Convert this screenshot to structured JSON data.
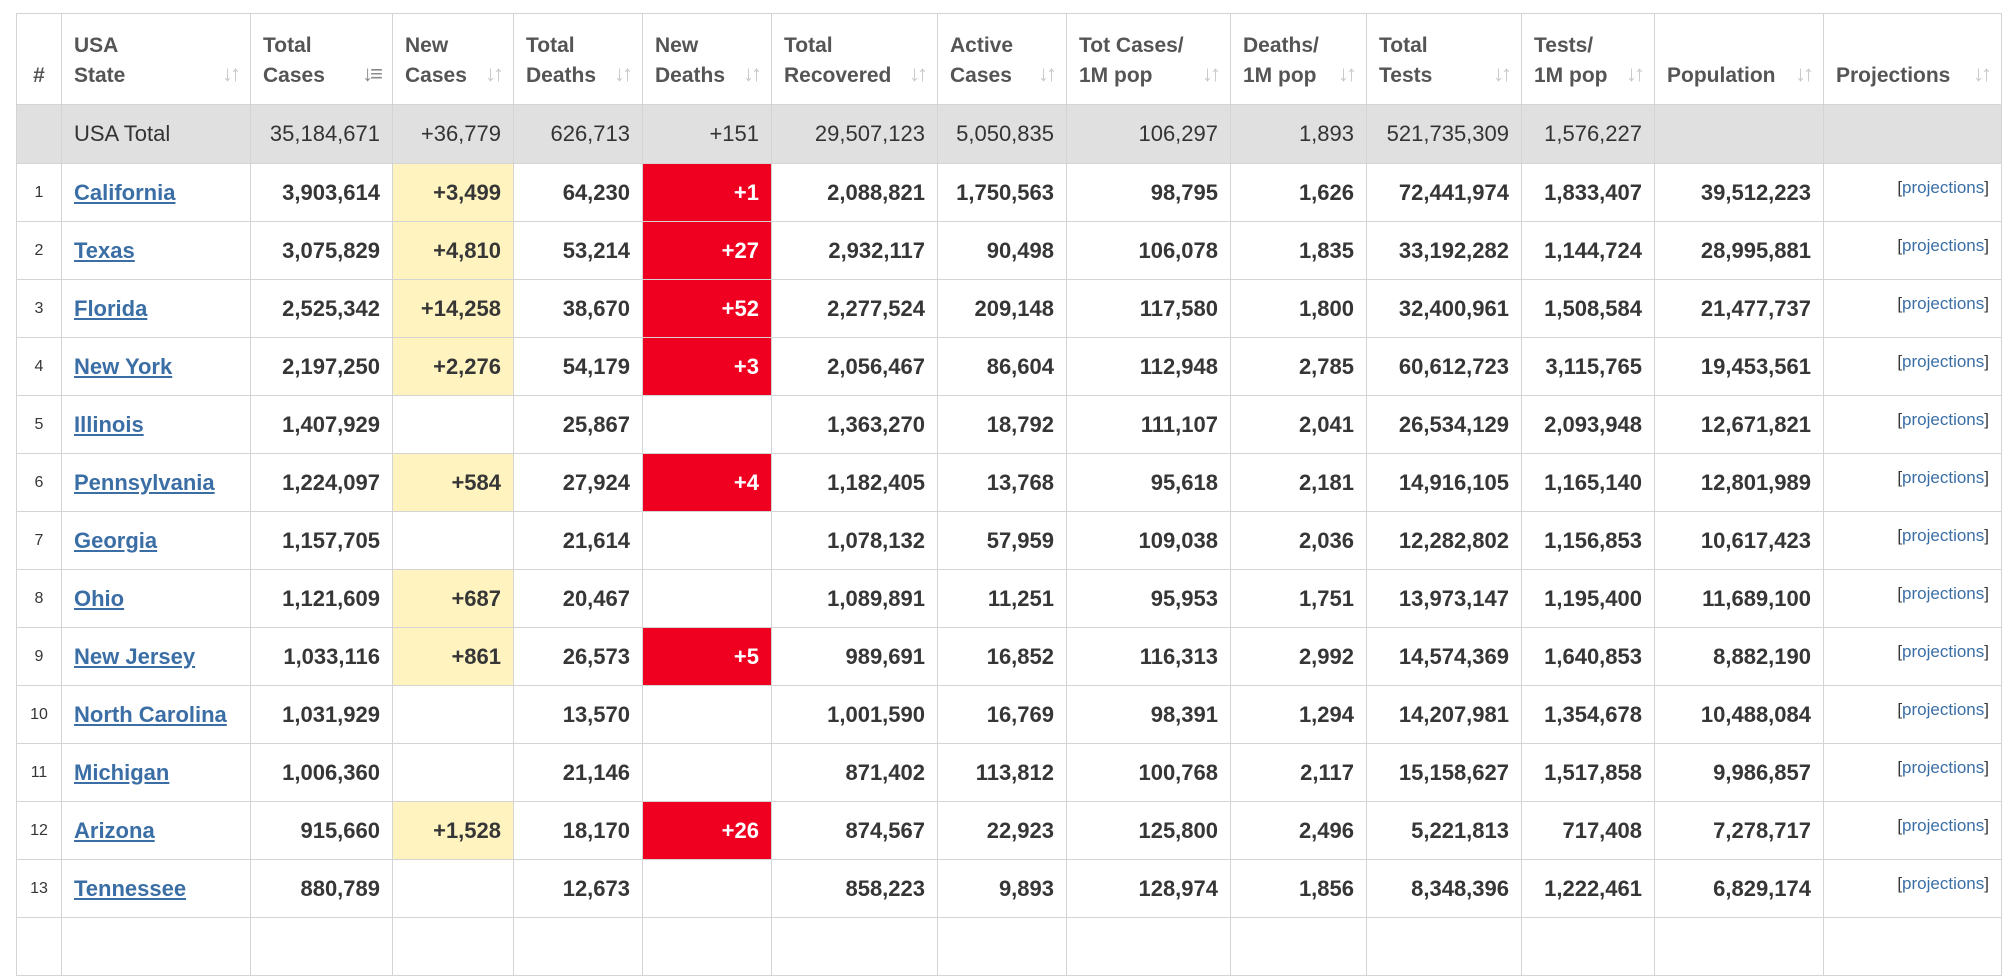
{
  "headers": {
    "num": "#",
    "state": [
      "USA",
      "State"
    ],
    "total_cases": [
      "Total",
      "Cases"
    ],
    "new_cases": [
      "New",
      "Cases"
    ],
    "total_deaths": [
      "Total",
      "Deaths"
    ],
    "new_deaths": [
      "New",
      "Deaths"
    ],
    "total_recovered": [
      "Total",
      "Recovered"
    ],
    "active_cases": [
      "Active",
      "Cases"
    ],
    "tot_cases_1m": [
      "Tot Cases/",
      "1M pop"
    ],
    "deaths_1m": [
      "Deaths/",
      "1M pop"
    ],
    "total_tests": [
      "Total",
      "Tests"
    ],
    "tests_1m": [
      "Tests/",
      "1M pop"
    ],
    "population": [
      "",
      "Population"
    ],
    "projections": [
      "",
      "Projections"
    ]
  },
  "icons": {
    "sort": "sort-arrows-icon",
    "sort_active": "sort-active-icon"
  },
  "colors": {
    "new_cases_bg": "#fff4c0",
    "new_deaths_bg": "#ef0020",
    "total_row_bg": "#e0e0e0",
    "link": "#3a6ea5"
  },
  "total": {
    "label": "USA Total",
    "total_cases": "35,184,671",
    "new_cases": "+36,779",
    "total_deaths": "626,713",
    "new_deaths": "+151",
    "total_recovered": "29,507,123",
    "active_cases": "5,050,835",
    "tot_cases_1m": "106,297",
    "deaths_1m": "1,893",
    "total_tests": "521,735,309",
    "tests_1m": "1,576,227"
  },
  "rows": [
    {
      "idx": "1",
      "state": "California",
      "total_cases": "3,903,614",
      "new_cases": "+3,499",
      "total_deaths": "64,230",
      "new_deaths": "+1",
      "total_recovered": "2,088,821",
      "active_cases": "1,750,563",
      "tot_cases_1m": "98,795",
      "deaths_1m": "1,626",
      "total_tests": "72,441,974",
      "tests_1m": "1,833,407",
      "population": "39,512,223",
      "projections": "projections"
    },
    {
      "idx": "2",
      "state": "Texas",
      "total_cases": "3,075,829",
      "new_cases": "+4,810",
      "total_deaths": "53,214",
      "new_deaths": "+27",
      "total_recovered": "2,932,117",
      "active_cases": "90,498",
      "tot_cases_1m": "106,078",
      "deaths_1m": "1,835",
      "total_tests": "33,192,282",
      "tests_1m": "1,144,724",
      "population": "28,995,881",
      "projections": "projections"
    },
    {
      "idx": "3",
      "state": "Florida",
      "total_cases": "2,525,342",
      "new_cases": "+14,258",
      "total_deaths": "38,670",
      "new_deaths": "+52",
      "total_recovered": "2,277,524",
      "active_cases": "209,148",
      "tot_cases_1m": "117,580",
      "deaths_1m": "1,800",
      "total_tests": "32,400,961",
      "tests_1m": "1,508,584",
      "population": "21,477,737",
      "projections": "projections"
    },
    {
      "idx": "4",
      "state": "New York",
      "total_cases": "2,197,250",
      "new_cases": "+2,276",
      "total_deaths": "54,179",
      "new_deaths": "+3",
      "total_recovered": "2,056,467",
      "active_cases": "86,604",
      "tot_cases_1m": "112,948",
      "deaths_1m": "2,785",
      "total_tests": "60,612,723",
      "tests_1m": "3,115,765",
      "population": "19,453,561",
      "projections": "projections"
    },
    {
      "idx": "5",
      "state": "Illinois",
      "total_cases": "1,407,929",
      "new_cases": "",
      "total_deaths": "25,867",
      "new_deaths": "",
      "total_recovered": "1,363,270",
      "active_cases": "18,792",
      "tot_cases_1m": "111,107",
      "deaths_1m": "2,041",
      "total_tests": "26,534,129",
      "tests_1m": "2,093,948",
      "population": "12,671,821",
      "projections": "projections"
    },
    {
      "idx": "6",
      "state": "Pennsylvania",
      "total_cases": "1,224,097",
      "new_cases": "+584",
      "total_deaths": "27,924",
      "new_deaths": "+4",
      "total_recovered": "1,182,405",
      "active_cases": "13,768",
      "tot_cases_1m": "95,618",
      "deaths_1m": "2,181",
      "total_tests": "14,916,105",
      "tests_1m": "1,165,140",
      "population": "12,801,989",
      "projections": "projections"
    },
    {
      "idx": "7",
      "state": "Georgia",
      "total_cases": "1,157,705",
      "new_cases": "",
      "total_deaths": "21,614",
      "new_deaths": "",
      "total_recovered": "1,078,132",
      "active_cases": "57,959",
      "tot_cases_1m": "109,038",
      "deaths_1m": "2,036",
      "total_tests": "12,282,802",
      "tests_1m": "1,156,853",
      "population": "10,617,423",
      "projections": "projections"
    },
    {
      "idx": "8",
      "state": "Ohio",
      "total_cases": "1,121,609",
      "new_cases": "+687",
      "total_deaths": "20,467",
      "new_deaths": "",
      "total_recovered": "1,089,891",
      "active_cases": "11,251",
      "tot_cases_1m": "95,953",
      "deaths_1m": "1,751",
      "total_tests": "13,973,147",
      "tests_1m": "1,195,400",
      "population": "11,689,100",
      "projections": "projections"
    },
    {
      "idx": "9",
      "state": "New Jersey",
      "total_cases": "1,033,116",
      "new_cases": "+861",
      "total_deaths": "26,573",
      "new_deaths": "+5",
      "total_recovered": "989,691",
      "active_cases": "16,852",
      "tot_cases_1m": "116,313",
      "deaths_1m": "2,992",
      "total_tests": "14,574,369",
      "tests_1m": "1,640,853",
      "population": "8,882,190",
      "projections": "projections"
    },
    {
      "idx": "10",
      "state": "North Carolina",
      "total_cases": "1,031,929",
      "new_cases": "",
      "total_deaths": "13,570",
      "new_deaths": "",
      "total_recovered": "1,001,590",
      "active_cases": "16,769",
      "tot_cases_1m": "98,391",
      "deaths_1m": "1,294",
      "total_tests": "14,207,981",
      "tests_1m": "1,354,678",
      "population": "10,488,084",
      "projections": "projections"
    },
    {
      "idx": "11",
      "state": "Michigan",
      "total_cases": "1,006,360",
      "new_cases": "",
      "total_deaths": "21,146",
      "new_deaths": "",
      "total_recovered": "871,402",
      "active_cases": "113,812",
      "tot_cases_1m": "100,768",
      "deaths_1m": "2,117",
      "total_tests": "15,158,627",
      "tests_1m": "1,517,858",
      "population": "9,986,857",
      "projections": "projections"
    },
    {
      "idx": "12",
      "state": "Arizona",
      "total_cases": "915,660",
      "new_cases": "+1,528",
      "total_deaths": "18,170",
      "new_deaths": "+26",
      "total_recovered": "874,567",
      "active_cases": "22,923",
      "tot_cases_1m": "125,800",
      "deaths_1m": "2,496",
      "total_tests": "5,221,813",
      "tests_1m": "717,408",
      "population": "7,278,717",
      "projections": "projections"
    },
    {
      "idx": "13",
      "state": "Tennessee",
      "total_cases": "880,789",
      "new_cases": "",
      "total_deaths": "12,673",
      "new_deaths": "",
      "total_recovered": "858,223",
      "active_cases": "9,893",
      "tot_cases_1m": "128,974",
      "deaths_1m": "1,856",
      "total_tests": "8,348,396",
      "tests_1m": "1,222,461",
      "population": "6,829,174",
      "projections": "projections"
    },
    {
      "idx": "",
      "state": "",
      "total_cases": "",
      "new_cases": "",
      "total_deaths": "",
      "new_deaths": "",
      "total_recovered": "",
      "active_cases": "",
      "tot_cases_1m": "",
      "deaths_1m": "",
      "total_tests": "",
      "tests_1m": "",
      "population": "",
      "projections": ""
    }
  ]
}
